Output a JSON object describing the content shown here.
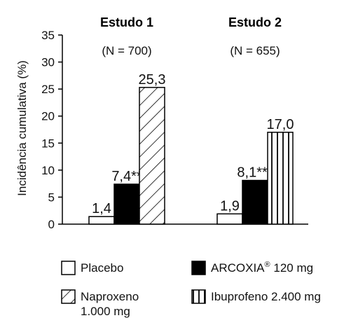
{
  "chart_data": {
    "type": "bar",
    "ylabel": "Incidência cumulativa (%)",
    "ylim": [
      0,
      35
    ],
    "yticks": [
      0,
      5,
      10,
      15,
      20,
      25,
      30,
      35
    ],
    "grid": false,
    "groups": [
      {
        "title": "Estudo 1",
        "n_label": "(N = 700)",
        "bars": [
          {
            "series": "Placebo",
            "value": 1.4,
            "label": "1,4"
          },
          {
            "series": "ARCOXIA",
            "value": 7.4,
            "label": "7,4**"
          },
          {
            "series": "Naproxeno",
            "value": 25.3,
            "label": "25,3"
          }
        ]
      },
      {
        "title": "Estudo 2",
        "n_label": "(N = 655)",
        "bars": [
          {
            "series": "Placebo",
            "value": 1.9,
            "label": "1,9"
          },
          {
            "series": "ARCOXIA",
            "value": 8.1,
            "label": "8,1***"
          },
          {
            "series": "Ibuprofeno",
            "value": 17.0,
            "label": "17,0"
          }
        ]
      }
    ],
    "series": [
      {
        "name": "Placebo",
        "fill": "white"
      },
      {
        "name": "ARCOXIA",
        "fill": "solid"
      },
      {
        "name": "Naproxeno",
        "fill": "diagonal"
      },
      {
        "name": "Ibuprofeno",
        "fill": "vertical"
      }
    ],
    "legend": {
      "placement": "bottom",
      "items": [
        {
          "key": "Placebo",
          "lines": [
            "Placebo"
          ]
        },
        {
          "key": "ARCOXIA",
          "lines": [
            "ARCOXIA® 120 mg"
          ]
        },
        {
          "key": "Naproxeno",
          "lines": [
            "Naproxeno",
            "1.000 mg"
          ]
        },
        {
          "key": "Ibuprofeno",
          "lines": [
            "Ibuprofeno 2.400 mg"
          ]
        }
      ]
    }
  },
  "colors": {
    "ink": "#000000",
    "background": "#ffffff"
  }
}
